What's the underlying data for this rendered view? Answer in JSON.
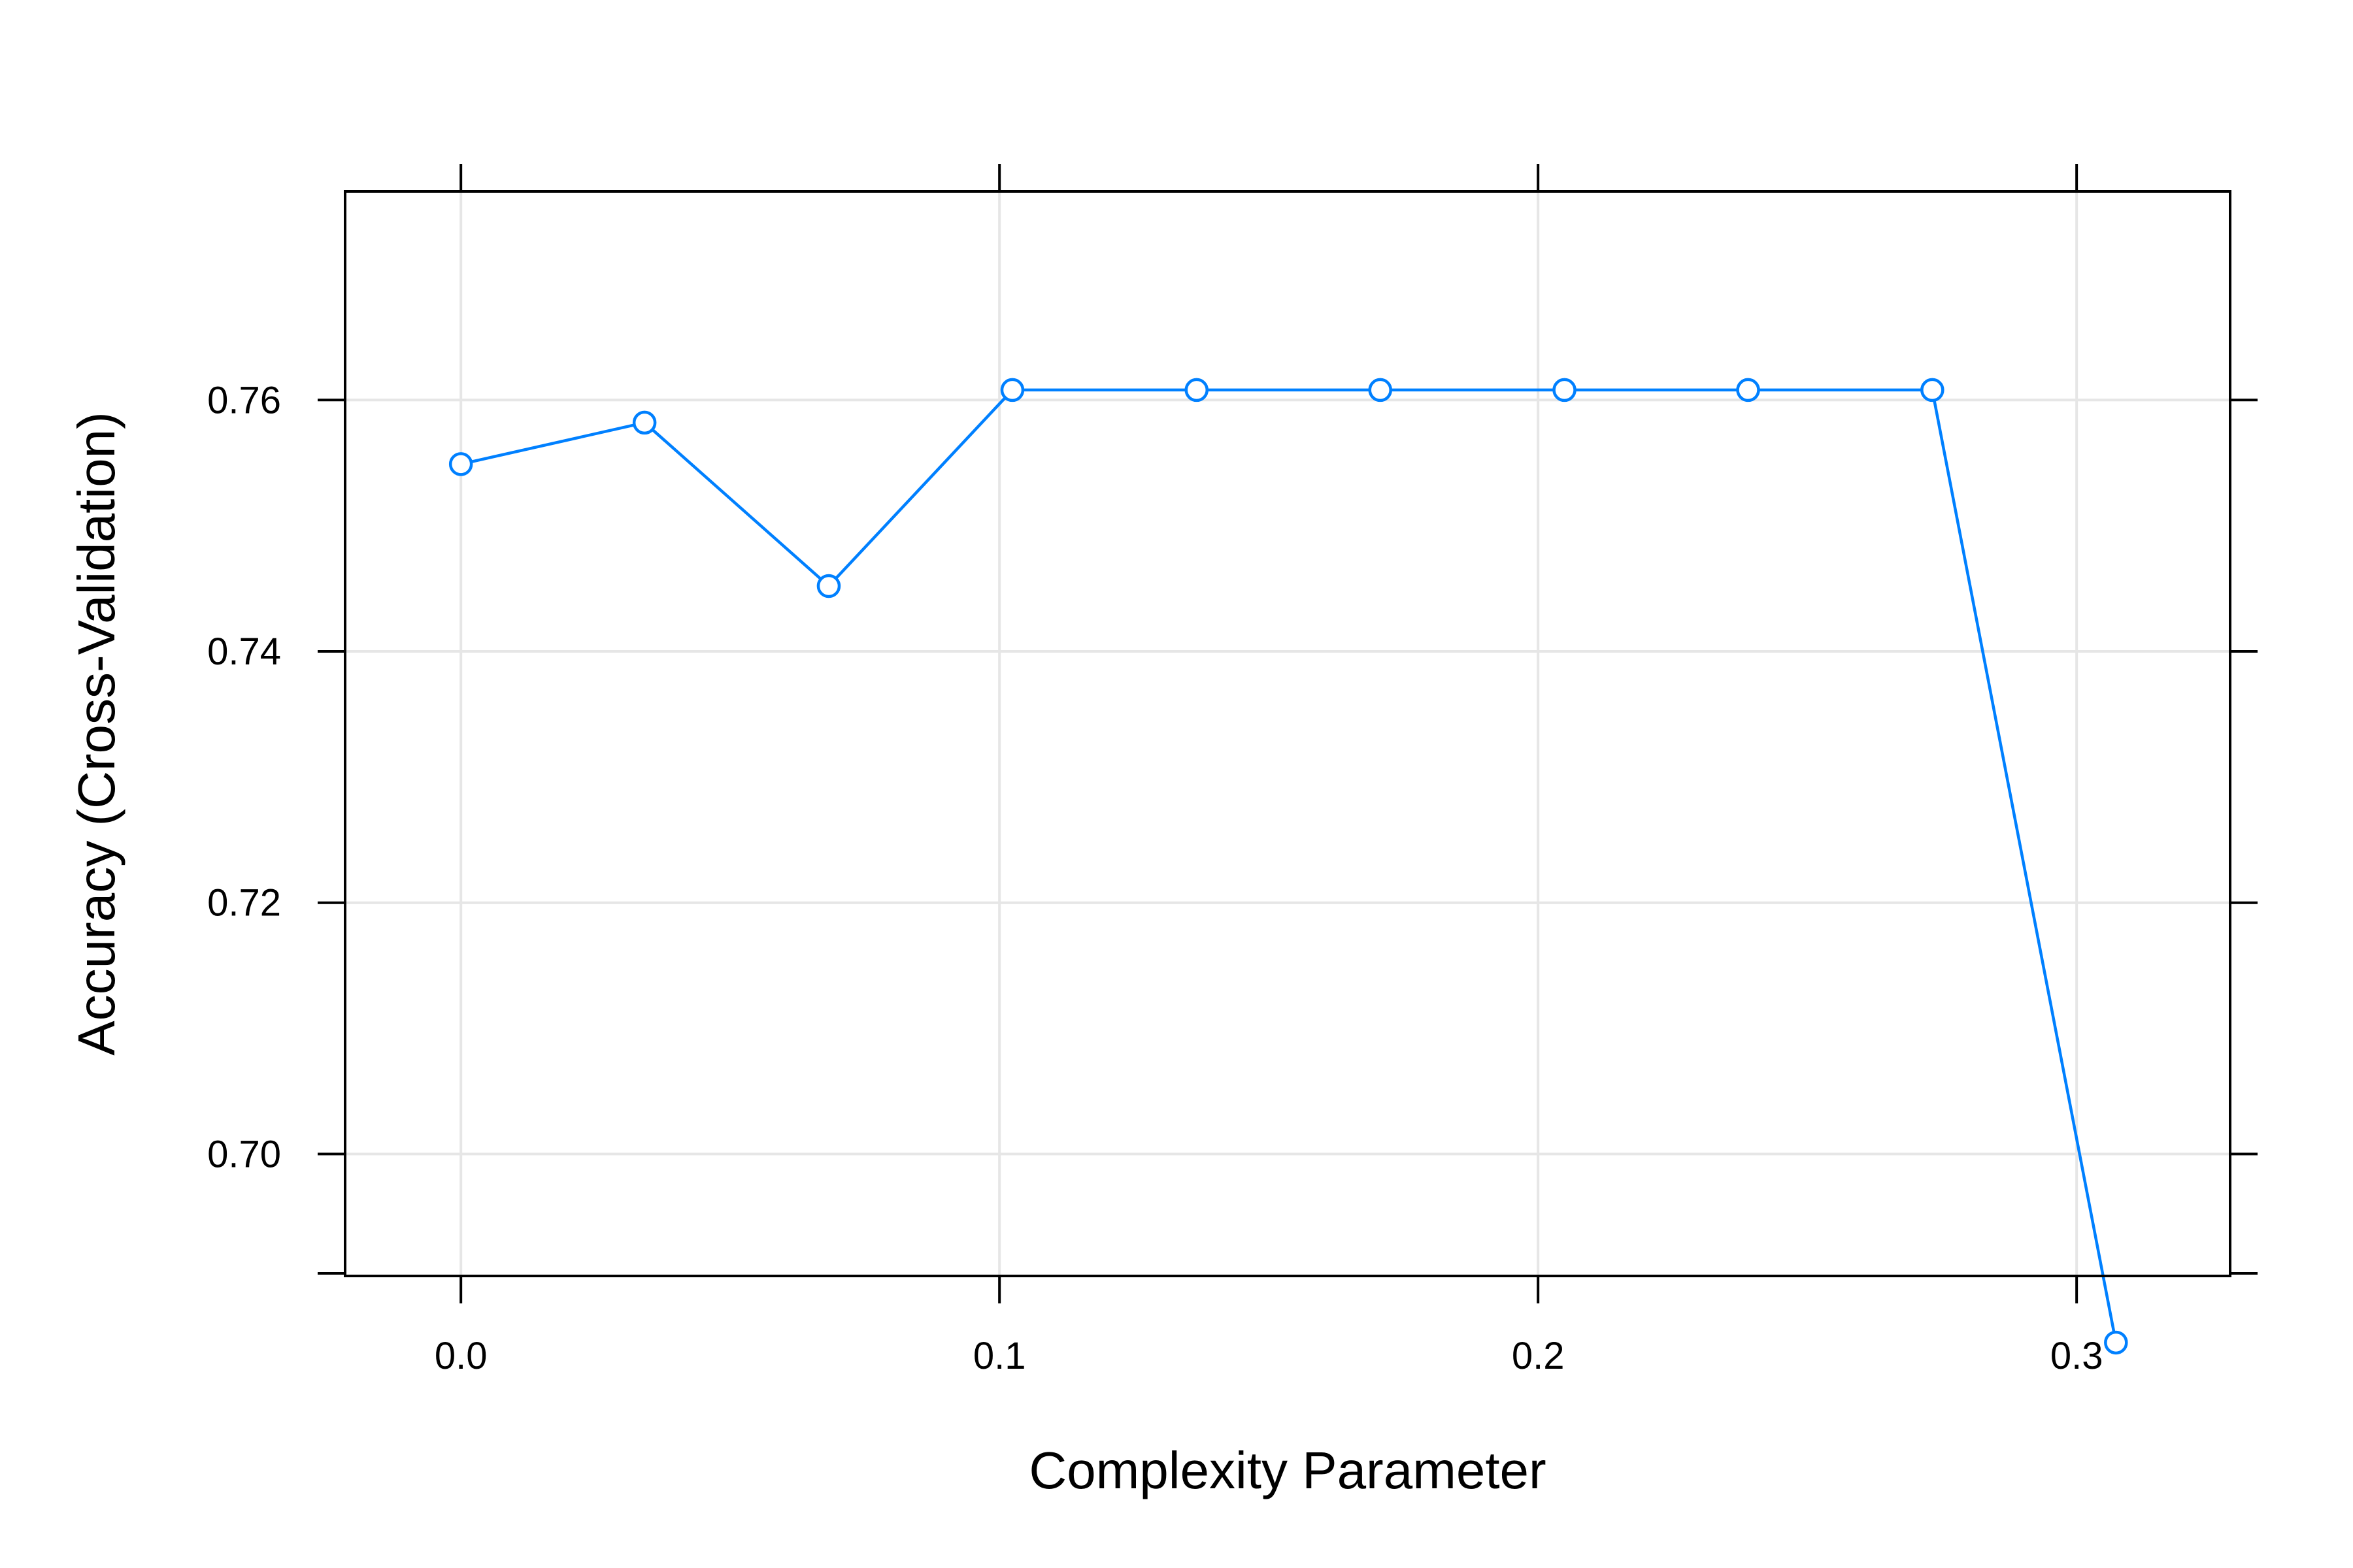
{
  "chart_data": {
    "type": "line",
    "title": "",
    "xlabel": "Complexity Parameter",
    "ylabel": "Accuracy (Cross-Validation)",
    "xlim": [
      -0.0215,
      0.3285
    ],
    "ylim": [
      0.6903,
      0.7766
    ],
    "x_ticks": [
      {
        "value": 0.0,
        "label": "0.0"
      },
      {
        "value": 0.1,
        "label": "0.1"
      },
      {
        "value": 0.2,
        "label": "0.2"
      },
      {
        "value": 0.3,
        "label": "0.3"
      }
    ],
    "y_ticks": [
      {
        "value": 0.7,
        "label": "0.70"
      },
      {
        "value": 0.72,
        "label": "0.72"
      },
      {
        "value": 0.74,
        "label": "0.74"
      },
      {
        "value": 0.76,
        "label": "0.76"
      }
    ],
    "y_minor_ticks": [
      0.68
    ],
    "grid": true,
    "marker": "open-circle",
    "series": [
      {
        "color": "#0080ff",
        "x": [
          0.0,
          0.0341,
          0.0683,
          0.1024,
          0.1366,
          0.1707,
          0.2049,
          0.239,
          0.2732,
          0.3073
        ],
        "y": [
          0.7549,
          0.7582,
          0.7452,
          0.7608,
          0.7608,
          0.7608,
          0.7608,
          0.7608,
          0.7608,
          0.685
        ]
      }
    ],
    "colors": {
      "grid": "#e6e6e6",
      "frame": "#000000",
      "series": "#0080ff"
    }
  }
}
